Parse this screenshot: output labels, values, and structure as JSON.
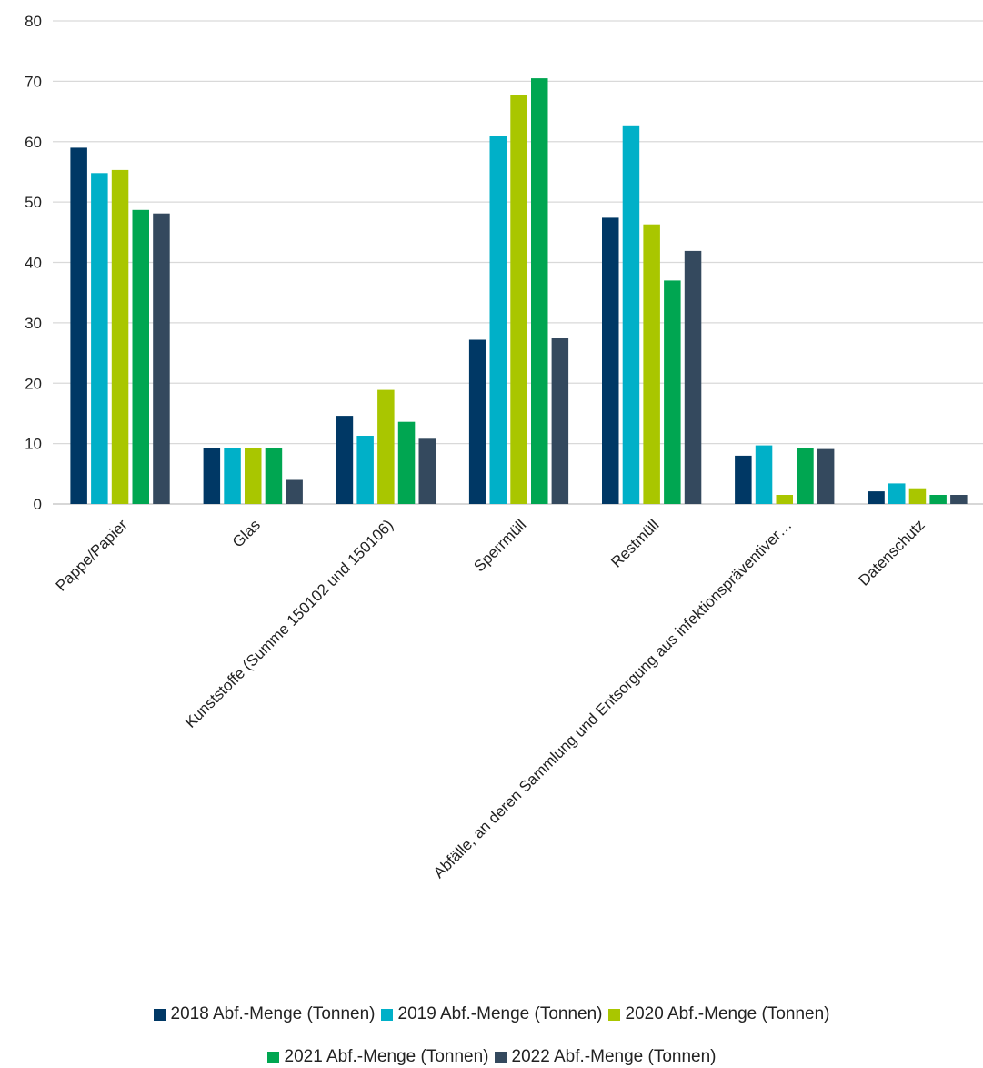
{
  "chart_data": {
    "type": "bar",
    "categories": [
      "Pappe/Papier",
      "Glas",
      "Kunststoffe (Summe 150102 und 150106)",
      "Sperrmüll",
      "Restmüll",
      "Abfälle, an deren Sammlung und Entsorgung aus infektionspräventiver…",
      "Datenschutz"
    ],
    "series": [
      {
        "name": "2018 Abf.-Menge (Tonnen)",
        "color": "#003865",
        "values": [
          59,
          9.3,
          14.6,
          27.2,
          47.4,
          8.0,
          2.1
        ]
      },
      {
        "name": "2019 Abf.-Menge (Tonnen)",
        "color": "#00b0c8",
        "values": [
          54.8,
          9.3,
          11.3,
          61.0,
          62.7,
          9.7,
          3.4
        ]
      },
      {
        "name": "2020 Abf.-Menge (Tonnen)",
        "color": "#a9c600",
        "values": [
          55.3,
          9.3,
          18.9,
          67.8,
          46.3,
          1.5,
          2.6
        ]
      },
      {
        "name": "2021 Abf.-Menge (Tonnen)",
        "color": "#00a651",
        "values": [
          48.7,
          9.3,
          13.6,
          70.5,
          37.0,
          9.3,
          1.5
        ]
      },
      {
        "name": "2022 Abf.-Menge (Tonnen)",
        "color": "#34495e",
        "values": [
          48.1,
          4.0,
          10.8,
          27.5,
          41.9,
          9.1,
          1.5
        ]
      }
    ],
    "ylim": [
      0,
      80
    ],
    "yticks": [
      0,
      10,
      20,
      30,
      40,
      50,
      60,
      70,
      80
    ],
    "grid": true,
    "legend_position": "bottom"
  }
}
